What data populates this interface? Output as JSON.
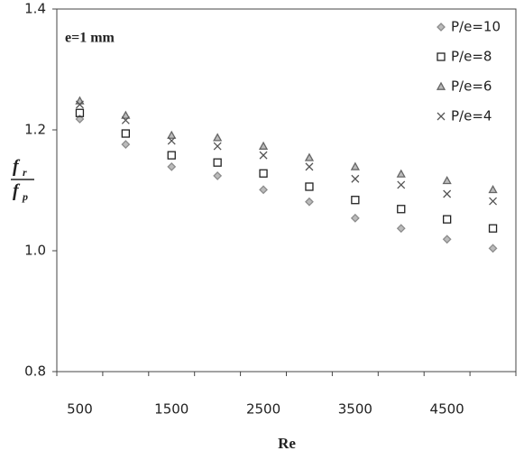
{
  "chart_data": {
    "type": "scatter",
    "annotation": "e=1 mm",
    "xlabel": "Re",
    "ylabel": {
      "top": "f",
      "top_sub": "r",
      "bottom": "f",
      "bottom_sub": "p"
    },
    "categories": [
      "500",
      null,
      "1500",
      null,
      "2500",
      null,
      "3500",
      null,
      "4500",
      null
    ],
    "ylim": [
      0.8,
      1.4
    ],
    "yticks": [
      0.8,
      {
        "value": 1,
        "label": "1.0"
      },
      1.2,
      1.4
    ],
    "legend": "top-right",
    "series": [
      {
        "name": "P/e=10",
        "marker": "diamond",
        "color": "#8c8c8c",
        "values": [
          1.218,
          1.176,
          1.139,
          1.124,
          1.101,
          1.081,
          1.054,
          1.037,
          1.019,
          1.004
        ]
      },
      {
        "name": "P/e=8",
        "marker": "square",
        "color": "#222222",
        "values": [
          1.228,
          1.194,
          1.158,
          1.146,
          1.128,
          1.106,
          1.084,
          1.069,
          1.052,
          1.037
        ]
      },
      {
        "name": "P/e=6",
        "marker": "triangle",
        "color": "#666666",
        "values": [
          1.248,
          1.224,
          1.191,
          1.187,
          1.173,
          1.154,
          1.139,
          1.127,
          1.116,
          1.101
        ]
      },
      {
        "name": "P/e=4",
        "marker": "x",
        "color": "#555555",
        "values": [
          1.242,
          1.216,
          1.182,
          1.173,
          1.158,
          1.139,
          1.119,
          1.109,
          1.094,
          1.082
        ]
      }
    ]
  }
}
